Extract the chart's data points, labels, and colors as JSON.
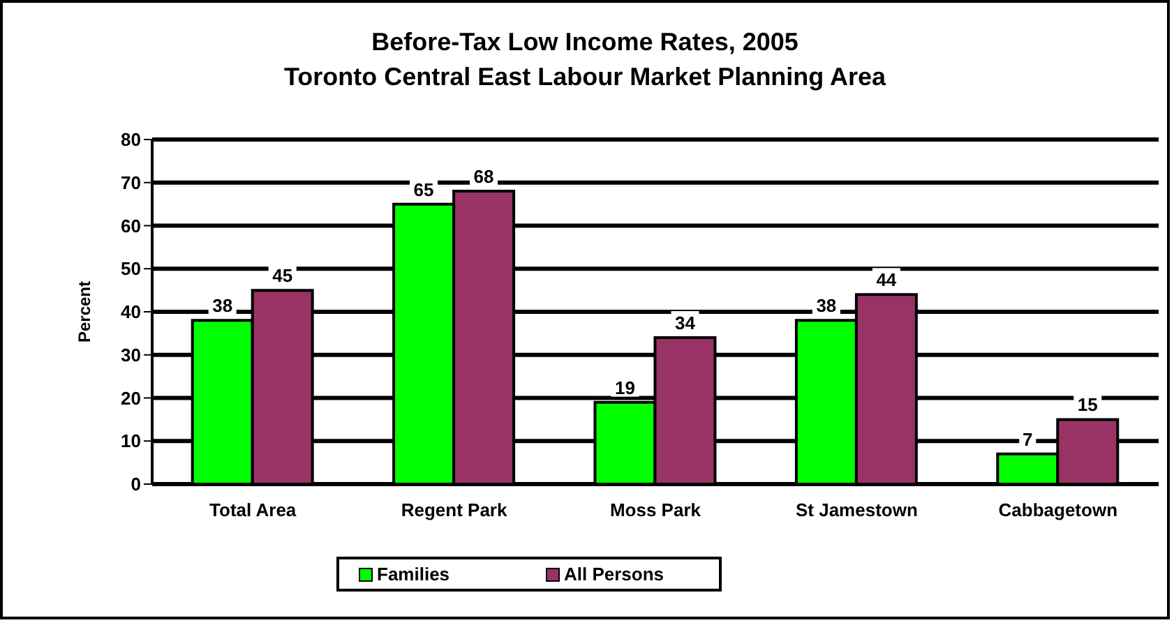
{
  "chart_data": {
    "type": "bar",
    "title": "Before-Tax Low Income Rates, 2005",
    "subtitle": "Toronto Central East Labour Market Planning Area",
    "ylabel": "Percent",
    "categories": [
      "Total Area",
      "Regent Park",
      "Moss Park",
      "St Jamestown",
      "Cabbagetown"
    ],
    "series": [
      {
        "name": "Families",
        "color": "#00ff00",
        "values": [
          38,
          65,
          19,
          38,
          7
        ]
      },
      {
        "name": "All Persons",
        "color": "#993366",
        "values": [
          45,
          68,
          34,
          44,
          15
        ]
      }
    ],
    "ylim": [
      0,
      80
    ],
    "yticks": [
      0,
      10,
      20,
      30,
      40,
      50,
      60,
      70,
      80
    ],
    "grid": "y",
    "legend": "bottom",
    "data_labels": true
  }
}
